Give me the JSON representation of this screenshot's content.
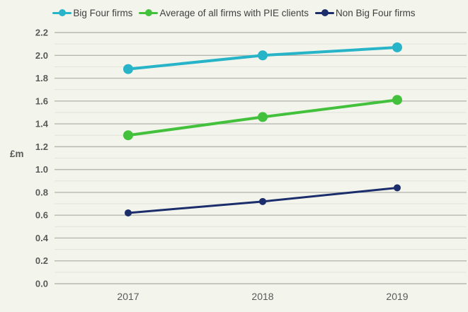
{
  "chart_data": {
    "type": "line",
    "title": "",
    "categories": [
      "2017",
      "2018",
      "2019"
    ],
    "series": [
      {
        "name": "Big Four firms",
        "color": "#27b4c8",
        "values": [
          1.88,
          2.0,
          2.07
        ]
      },
      {
        "name": "Average of all firms with PIE clients",
        "color": "#44c13c",
        "values": [
          1.3,
          1.46,
          1.61
        ]
      },
      {
        "name": "Non Big Four firms",
        "color": "#1b2d6b",
        "values": [
          0.62,
          0.72,
          0.84
        ]
      }
    ],
    "xlabel": "",
    "ylabel": "£m",
    "ylim": [
      0.0,
      2.2
    ],
    "y_ticks": [
      "0.0",
      "0.2",
      "0.4",
      "0.6",
      "0.8",
      "1.0",
      "1.2",
      "1.4",
      "1.6",
      "1.8",
      "2.0",
      "2.2"
    ],
    "y_major_step": 0.2,
    "y_minor_step": 0.1,
    "grid": "on",
    "legend_position": "top",
    "colors": {
      "background": "#f3f5ec",
      "grid_major": "#b7b8b1",
      "grid_minor": "#e2e4da",
      "tick_text": "#595959",
      "legend_text": "#3f3f3f"
    }
  }
}
